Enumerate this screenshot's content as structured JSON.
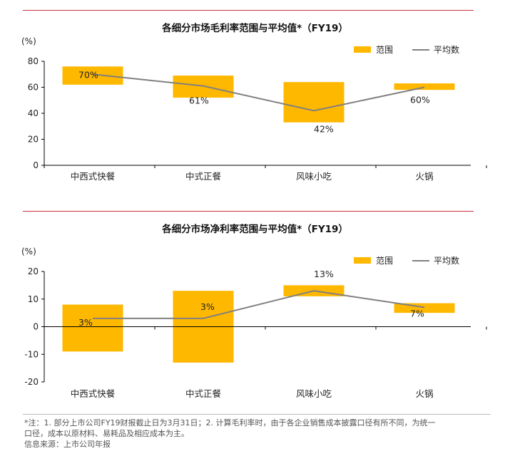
{
  "chart_data": [
    {
      "type": "bar",
      "subtype": "floating-range-bar-with-line",
      "title": "各细分市场毛利率范围与平均值*（FY19）",
      "ylabel": "(%)",
      "xlabel": "",
      "categories": [
        "中西式快餐",
        "中式正餐",
        "风味小吃",
        "火锅"
      ],
      "ylim": [
        0,
        80
      ],
      "yticks": [
        0,
        20,
        40,
        60,
        80
      ],
      "grid": false,
      "legend_position": "top-right",
      "series": [
        {
          "name": "范围",
          "kind": "range-bar",
          "color": "#FFB800",
          "ranges": [
            [
              62,
              76
            ],
            [
              52,
              69
            ],
            [
              33,
              64
            ],
            [
              58,
              63
            ]
          ]
        },
        {
          "name": "平均数",
          "kind": "line",
          "color": "#808080",
          "values": [
            70,
            61,
            42,
            60
          ],
          "labels": [
            "70%",
            "61%",
            "42%",
            "60%"
          ]
        }
      ]
    },
    {
      "type": "bar",
      "subtype": "floating-range-bar-with-line",
      "title": "各细分市场净利率范围与平均值*（FY19）",
      "ylabel": "(%)",
      "xlabel": "",
      "categories": [
        "中西式快餐",
        "中式正餐",
        "风味小吃",
        "火锅"
      ],
      "ylim": [
        -20,
        20
      ],
      "yticks": [
        -20,
        -10,
        0,
        10,
        20
      ],
      "grid": false,
      "legend_position": "top-right",
      "series": [
        {
          "name": "范围",
          "kind": "range-bar",
          "color": "#FFB800",
          "ranges": [
            [
              -9,
              8
            ],
            [
              -13,
              13
            ],
            [
              11,
              15
            ],
            [
              5,
              8.5
            ]
          ]
        },
        {
          "name": "平均数",
          "kind": "line",
          "color": "#808080",
          "values": [
            3,
            3,
            13,
            7
          ],
          "labels": [
            "3%",
            "3%",
            "13%",
            "7%"
          ]
        }
      ]
    }
  ],
  "footnote": {
    "note_line1": "*注：1. 部分上市公司FY19财报截止日为3月31日；2. 计算毛利率时，由于各企业销售成本披露口径有所不同，为统一",
    "note_line2": "口径，成本以原材料、易耗品及相应成本为主。",
    "source": "信息来源：上市公司年报"
  }
}
